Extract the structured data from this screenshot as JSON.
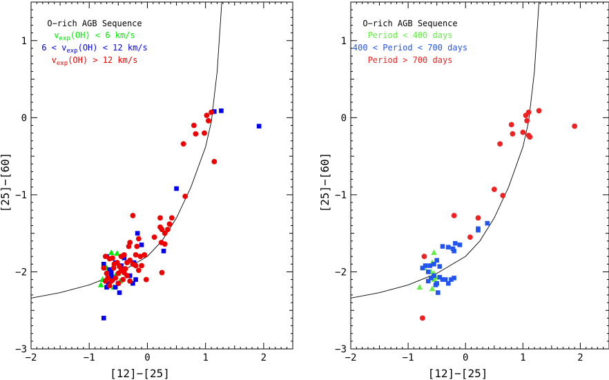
{
  "chart_data": [
    {
      "type": "scatter",
      "panel": "left",
      "xlabel": "[12]−[25]",
      "ylabel": "[25]−[60]",
      "xlim": [
        -2,
        2.5
      ],
      "ylim": [
        -3,
        1.5
      ],
      "xticks": [
        -2,
        -1,
        0,
        1,
        2
      ],
      "yticks": [
        -3,
        -2,
        -1,
        0,
        1
      ],
      "grid": false,
      "legend_position": "top-left",
      "annotations": [
        "O−rich AGB Sequence"
      ],
      "curve": {
        "name": "O−rich AGB Sequence",
        "x": [
          -2.0,
          -1.5,
          -1.0,
          -0.5,
          0.0,
          0.25,
          0.5,
          0.75,
          1.0,
          1.1,
          1.2,
          1.28
        ],
        "y": [
          -2.34,
          -2.27,
          -2.17,
          -2.02,
          -1.8,
          -1.6,
          -1.3,
          -0.9,
          -0.38,
          -0.05,
          0.6,
          1.5
        ]
      },
      "series": [
        {
          "name": "v_exp(OH) < 6 km/s",
          "label_main": "v",
          "label_sub": "exp",
          "label_rest": "(OH) < 6 km/s",
          "color": "#00ee00",
          "marker": "triangle",
          "points": [
            [
              -0.8,
              -2.17
            ],
            [
              -0.77,
              -2.1
            ],
            [
              -0.62,
              -1.75
            ],
            [
              -0.52,
              -1.76
            ],
            [
              -0.55,
              -2.05
            ],
            [
              -0.5,
              -2.02
            ],
            [
              -0.47,
              -2.12
            ],
            [
              -0.58,
              -2.2
            ],
            [
              -0.7,
              -1.95
            ]
          ]
        },
        {
          "name": "6 < v_exp(OH) < 12 km/s",
          "label_pre": "6 < v",
          "label_sub": "exp",
          "label_rest": "(OH) < 12 km/s",
          "color": "#0000ee",
          "marker": "square",
          "points": [
            [
              1.15,
              0.08
            ],
            [
              1.27,
              0.09
            ],
            [
              1.92,
              -0.11
            ],
            [
              0.5,
              -0.92
            ],
            [
              -0.17,
              -1.5
            ],
            [
              -0.1,
              -1.65
            ],
            [
              0.28,
              -1.73
            ],
            [
              -0.23,
              -1.88
            ],
            [
              -0.4,
              -1.82
            ],
            [
              -0.75,
              -1.9
            ],
            [
              -0.7,
              -1.8
            ],
            [
              -0.65,
              -1.97
            ],
            [
              -0.62,
              -2.05
            ],
            [
              -0.6,
              -2.1
            ],
            [
              -0.55,
              -1.88
            ],
            [
              -0.5,
              -2.15
            ],
            [
              -0.48,
              -2.27
            ],
            [
              -0.3,
              -2.05
            ],
            [
              -0.25,
              -2.15
            ],
            [
              -0.2,
              -2.1
            ],
            [
              -0.7,
              -2.2
            ],
            [
              -0.67,
              -2.15
            ],
            [
              -0.55,
              -2.2
            ],
            [
              -0.45,
              -1.92
            ],
            [
              -0.75,
              -2.6
            ],
            [
              -0.62,
              -2.0
            ]
          ]
        },
        {
          "name": "v_exp(OH) > 12 km/s",
          "label_main": "v",
          "label_sub": "exp",
          "label_rest": "(OH) > 12 km/s",
          "color": "#ee0000",
          "marker": "circle",
          "points": [
            [
              1.02,
              0.03
            ],
            [
              1.05,
              -0.04
            ],
            [
              1.1,
              0.07
            ],
            [
              0.98,
              -0.2
            ],
            [
              0.8,
              -0.1
            ],
            [
              0.83,
              -0.21
            ],
            [
              0.62,
              -0.34
            ],
            [
              1.15,
              -0.57
            ],
            [
              0.65,
              -1.02
            ],
            [
              0.42,
              -1.3
            ],
            [
              0.38,
              -1.38
            ],
            [
              0.35,
              -1.45
            ],
            [
              0.22,
              -1.3
            ],
            [
              0.22,
              -1.42
            ],
            [
              0.25,
              -1.45
            ],
            [
              0.3,
              -1.5
            ],
            [
              0.24,
              -1.62
            ],
            [
              0.3,
              -1.64
            ],
            [
              0.12,
              -1.55
            ],
            [
              0.25,
              -2.01
            ],
            [
              -0.25,
              -1.27
            ],
            [
              -0.15,
              -1.57
            ],
            [
              -0.18,
              -1.67
            ],
            [
              -0.2,
              -1.78
            ],
            [
              -0.12,
              -1.8
            ],
            [
              -0.05,
              -1.78
            ],
            [
              -0.32,
              -1.67
            ],
            [
              -0.3,
              -1.62
            ],
            [
              -0.3,
              -1.85
            ],
            [
              -0.35,
              -1.88
            ],
            [
              -0.4,
              -1.78
            ],
            [
              -0.45,
              -1.8
            ],
            [
              -0.52,
              -1.88
            ],
            [
              -0.57,
              -1.9
            ],
            [
              -0.6,
              -1.82
            ],
            [
              -0.65,
              -1.83
            ],
            [
              -0.72,
              -1.8
            ],
            [
              -0.75,
              -1.95
            ],
            [
              -0.7,
              -2.02
            ],
            [
              -0.68,
              -2.08
            ],
            [
              -0.62,
              -2.12
            ],
            [
              -0.55,
              -2.08
            ],
            [
              -0.5,
              -2.02
            ],
            [
              -0.45,
              -1.98
            ],
            [
              -0.4,
              -2.01
            ],
            [
              -0.35,
              -2.05
            ],
            [
              -0.3,
              -2.12
            ],
            [
              -0.25,
              -1.9
            ],
            [
              -0.2,
              -1.92
            ],
            [
              -0.1,
              -1.92
            ],
            [
              -0.72,
              -2.12
            ],
            [
              -0.65,
              -2.18
            ],
            [
              -0.5,
              -2.15
            ],
            [
              -0.42,
              -2.1
            ],
            [
              -0.58,
              -1.95
            ],
            [
              -0.48,
              -1.93
            ],
            [
              -0.38,
              -1.96
            ],
            [
              -0.15,
              -1.98
            ],
            [
              -0.02,
              -2.1
            ]
          ]
        }
      ]
    },
    {
      "type": "scatter",
      "panel": "right",
      "xlabel": "[12]−[25]",
      "ylabel": "[25]−[60]",
      "xlim": [
        -2,
        2.5
      ],
      "ylim": [
        -3,
        1.5
      ],
      "xticks": [
        -2,
        -1,
        0,
        1,
        2
      ],
      "yticks": [
        -3,
        -2,
        -1,
        0,
        1
      ],
      "grid": false,
      "legend_position": "top-left",
      "annotations": [
        "O−rich AGB Sequence"
      ],
      "curve": {
        "name": "O−rich AGB Sequence",
        "x": [
          -2.0,
          -1.5,
          -1.0,
          -0.5,
          0.0,
          0.25,
          0.5,
          0.75,
          1.0,
          1.1,
          1.2,
          1.28
        ],
        "y": [
          -2.34,
          -2.27,
          -2.17,
          -2.02,
          -1.8,
          -1.6,
          -1.3,
          -0.9,
          -0.38,
          -0.05,
          0.6,
          1.5
        ]
      },
      "series": [
        {
          "name": "Period < 400 days",
          "label": "Period < 400 days",
          "color": "#66ee44",
          "marker": "triangle",
          "points": [
            [
              -0.8,
              -2.2
            ],
            [
              -0.72,
              -1.95
            ],
            [
              -0.55,
              -1.75
            ],
            [
              -0.58,
              -1.88
            ],
            [
              -0.6,
              -2.0
            ],
            [
              -0.55,
              -2.02
            ],
            [
              -0.52,
              -2.07
            ],
            [
              -0.55,
              -2.1
            ],
            [
              -0.5,
              -2.15
            ],
            [
              -0.58,
              -2.22
            ]
          ]
        },
        {
          "name": "400 < Period < 700 days",
          "label": "400 < Period < 700 days",
          "color": "#2255ee",
          "marker": "square",
          "points": [
            [
              0.38,
              -1.37
            ],
            [
              0.22,
              -1.44
            ],
            [
              0.22,
              -1.46
            ],
            [
              -0.1,
              -1.65
            ],
            [
              -0.18,
              -1.63
            ],
            [
              -0.22,
              -1.7
            ],
            [
              -0.2,
              -1.73
            ],
            [
              -0.3,
              -1.68
            ],
            [
              -0.4,
              -1.67
            ],
            [
              -0.5,
              -1.85
            ],
            [
              -0.45,
              -1.93
            ],
            [
              -0.55,
              -1.9
            ],
            [
              -0.62,
              -1.92
            ],
            [
              -0.7,
              -1.92
            ],
            [
              -0.75,
              -1.95
            ],
            [
              -0.65,
              -2.0
            ],
            [
              -0.55,
              -2.05
            ],
            [
              -0.45,
              -2.07
            ],
            [
              -0.4,
              -2.1
            ],
            [
              -0.35,
              -2.1
            ],
            [
              -0.25,
              -2.1
            ],
            [
              -0.2,
              -2.08
            ],
            [
              -0.3,
              -2.15
            ],
            [
              -0.65,
              -2.12
            ],
            [
              -0.5,
              -2.15
            ],
            [
              -0.52,
              -2.17
            ],
            [
              -0.48,
              -2.27
            ],
            [
              -0.6,
              -2.08
            ]
          ]
        },
        {
          "name": "Period > 700 days",
          "label": "Period > 700 days",
          "color": "#ee2222",
          "marker": "circle",
          "points": [
            [
              1.05,
              0.03
            ],
            [
              1.1,
              0.07
            ],
            [
              1.28,
              0.09
            ],
            [
              1.07,
              -0.04
            ],
            [
              1.0,
              -0.19
            ],
            [
              0.8,
              -0.09
            ],
            [
              0.82,
              -0.21
            ],
            [
              1.1,
              -0.23
            ],
            [
              1.12,
              -0.25
            ],
            [
              1.9,
              -0.11
            ],
            [
              0.6,
              -0.34
            ],
            [
              0.5,
              -0.93
            ],
            [
              0.65,
              -1.01
            ],
            [
              -0.2,
              -1.27
            ],
            [
              0.22,
              -1.3
            ],
            [
              0.08,
              -1.55
            ],
            [
              -0.72,
              -1.8
            ],
            [
              -0.75,
              -2.6
            ]
          ]
        }
      ]
    }
  ]
}
